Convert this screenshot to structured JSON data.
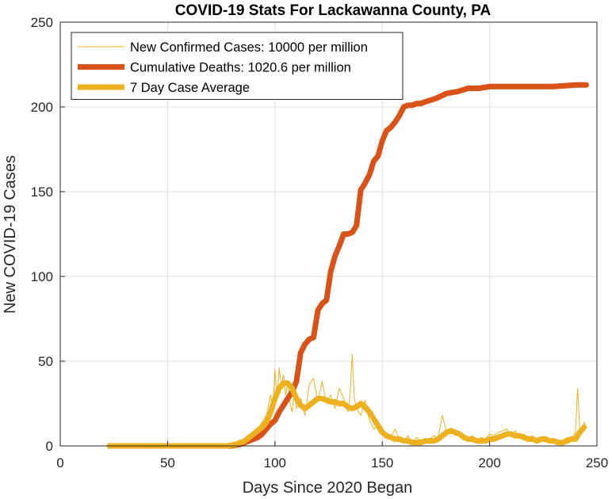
{
  "chart_data": {
    "type": "line",
    "title": "COVID-19 Stats For Lackawanna County, PA",
    "xlabel": "Days Since 2020 Began",
    "ylabel": "New COVID-19 Cases",
    "xlim": [
      0,
      250
    ],
    "ylim": [
      0,
      250
    ],
    "xticks": [
      0,
      50,
      100,
      150,
      200,
      250
    ],
    "yticks": [
      0,
      50,
      100,
      150,
      200,
      250
    ],
    "grid": true,
    "legend_position": "top-left",
    "series": [
      {
        "name": "New Confirmed Cases: 10000 per million",
        "color": "#EDB120",
        "style": "thin",
        "x": [
          23,
          30,
          40,
          50,
          60,
          70,
          78,
          80,
          82,
          84,
          86,
          88,
          90,
          92,
          94,
          96,
          97,
          98,
          99,
          100,
          101,
          102,
          103,
          104,
          105,
          106,
          107,
          108,
          109,
          110,
          112,
          114,
          116,
          118,
          120,
          122,
          124,
          126,
          128,
          130,
          132,
          134,
          135,
          136,
          137,
          138,
          140,
          142,
          144,
          146,
          148,
          150,
          152,
          154,
          156,
          158,
          160,
          162,
          164,
          166,
          168,
          170,
          172,
          174,
          176,
          178,
          180,
          182,
          184,
          186,
          188,
          190,
          192,
          194,
          196,
          198,
          200,
          202,
          204,
          206,
          208,
          210,
          212,
          214,
          216,
          218,
          220,
          222,
          224,
          226,
          228,
          230,
          232,
          234,
          236,
          238,
          240,
          241,
          242,
          243,
          244,
          245
        ],
        "y": [
          0,
          0,
          0,
          0,
          0,
          0,
          0,
          1,
          2,
          2,
          4,
          3,
          8,
          10,
          14,
          18,
          24,
          30,
          20,
          45,
          28,
          46,
          35,
          42,
          30,
          37,
          25,
          20,
          32,
          22,
          28,
          18,
          36,
          40,
          26,
          38,
          25,
          30,
          22,
          34,
          28,
          20,
          30,
          54,
          28,
          22,
          18,
          27,
          15,
          10,
          12,
          8,
          6,
          5,
          10,
          4,
          3,
          6,
          2,
          5,
          3,
          2,
          4,
          6,
          5,
          18,
          8,
          10,
          6,
          8,
          5,
          4,
          6,
          3,
          5,
          4,
          7,
          6,
          8,
          9,
          10,
          6,
          9,
          5,
          7,
          4,
          6,
          3,
          5,
          4,
          3,
          4,
          2,
          3,
          5,
          4,
          8,
          34,
          10,
          8,
          14,
          11
        ]
      },
      {
        "name": "Cumulative Deaths: 1020.6 per million",
        "color": "#D95319",
        "style": "thick",
        "x": [
          23,
          40,
          60,
          80,
          84,
          86,
          88,
          90,
          92,
          94,
          96,
          98,
          100,
          102,
          104,
          106,
          108,
          110,
          112,
          114,
          116,
          118,
          120,
          122,
          124,
          126,
          128,
          130,
          132,
          134,
          136,
          138,
          140,
          142,
          144,
          146,
          148,
          150,
          152,
          154,
          156,
          158,
          160,
          162,
          164,
          166,
          168,
          170,
          175,
          180,
          185,
          190,
          195,
          200,
          210,
          220,
          230,
          240,
          245
        ],
        "y": [
          0,
          0,
          0,
          0,
          1,
          2,
          3,
          4,
          5,
          7,
          10,
          13,
          15,
          20,
          24,
          28,
          32,
          38,
          55,
          60,
          63,
          64,
          80,
          84,
          86,
          103,
          112,
          118,
          125,
          125,
          126,
          130,
          151,
          155,
          160,
          168,
          171,
          180,
          186,
          188,
          191,
          195,
          200,
          201,
          201,
          202,
          202,
          203,
          205,
          208,
          209,
          211,
          211,
          212,
          212,
          212,
          212,
          213,
          213
        ]
      },
      {
        "name": "7 Day Case Average",
        "color": "#EDB120",
        "style": "thick",
        "x": [
          23,
          40,
          60,
          70,
          78,
          80,
          82,
          84,
          86,
          88,
          90,
          92,
          94,
          96,
          98,
          100,
          102,
          104,
          106,
          108,
          110,
          112,
          114,
          116,
          118,
          120,
          122,
          124,
          126,
          128,
          130,
          132,
          134,
          136,
          138,
          140,
          142,
          144,
          146,
          148,
          150,
          152,
          154,
          156,
          158,
          160,
          162,
          164,
          166,
          168,
          170,
          172,
          174,
          176,
          178,
          180,
          182,
          184,
          186,
          188,
          190,
          192,
          194,
          196,
          198,
          200,
          202,
          204,
          206,
          208,
          210,
          212,
          214,
          216,
          218,
          220,
          222,
          224,
          226,
          228,
          230,
          232,
          234,
          236,
          238,
          240,
          242,
          244
        ],
        "y": [
          0,
          0,
          0,
          0,
          0,
          0.5,
          1,
          2,
          3,
          5,
          7,
          9,
          11,
          14,
          20,
          28,
          34,
          37,
          37,
          34,
          28,
          24,
          22,
          24,
          26,
          28,
          28,
          27,
          26,
          26,
          25,
          25,
          23,
          22,
          23,
          25,
          23,
          20,
          16,
          12,
          8,
          6,
          5,
          4,
          4,
          3,
          3,
          2,
          2,
          2,
          3,
          3,
          3,
          4,
          6,
          8,
          9,
          8,
          7,
          5,
          4,
          4,
          3,
          3,
          3,
          4,
          4,
          5,
          6,
          7,
          7,
          6,
          6,
          5,
          4,
          4,
          3,
          4,
          4,
          3,
          3,
          2,
          2,
          3,
          4,
          4,
          8,
          11
        ]
      }
    ]
  }
}
